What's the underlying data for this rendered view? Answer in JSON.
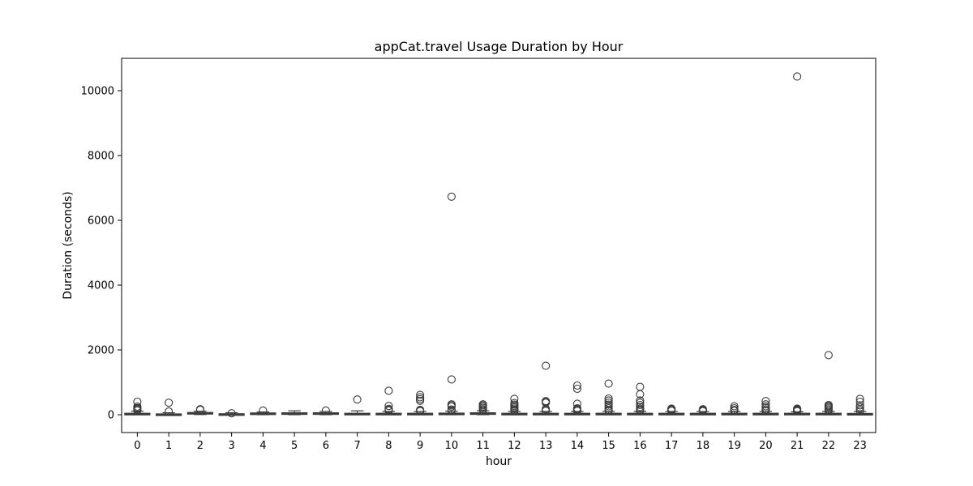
{
  "chart_data": {
    "type": "box",
    "title": "appCat.travel Usage Duration by Hour",
    "xlabel": "hour",
    "ylabel": "Duration (seconds)",
    "ylim": [
      -550,
      11000
    ],
    "yticks": [
      0,
      2000,
      4000,
      6000,
      8000,
      10000
    ],
    "categories": [
      "0",
      "1",
      "2",
      "3",
      "4",
      "5",
      "6",
      "7",
      "8",
      "9",
      "10",
      "11",
      "12",
      "13",
      "14",
      "15",
      "16",
      "17",
      "18",
      "19",
      "20",
      "21",
      "22",
      "23"
    ],
    "grid": false,
    "legend": "none",
    "box_color": "#3a3a3a",
    "boxes": [
      {
        "hour": "0",
        "whislo": 0,
        "q1": 5,
        "med": 20,
        "q3": 45,
        "whishi": 110,
        "fliers": [
          130,
          160,
          190,
          210,
          250,
          400
        ]
      },
      {
        "hour": "1",
        "whislo": 0,
        "q1": 3,
        "med": 10,
        "q3": 25,
        "whishi": 60,
        "fliers": [
          100,
          370
        ]
      },
      {
        "hour": "2",
        "whislo": 5,
        "q1": 25,
        "med": 45,
        "q3": 70,
        "whishi": 110,
        "fliers": [
          150,
          170
        ]
      },
      {
        "hour": "3",
        "whislo": 0,
        "q1": 5,
        "med": 15,
        "q3": 30,
        "whishi": 60,
        "fliers": [
          45
        ]
      },
      {
        "hour": "4",
        "whislo": 0,
        "q1": 15,
        "med": 35,
        "q3": 55,
        "whishi": 85,
        "fliers": [
          130
        ]
      },
      {
        "hour": "5",
        "whislo": 0,
        "q1": 10,
        "med": 35,
        "q3": 60,
        "whishi": 120,
        "fliers": []
      },
      {
        "hour": "6",
        "whislo": 0,
        "q1": 10,
        "med": 35,
        "q3": 60,
        "whishi": 100,
        "fliers": [
          130
        ]
      },
      {
        "hour": "7",
        "whislo": 0,
        "q1": 5,
        "med": 20,
        "q3": 45,
        "whishi": 120,
        "fliers": [
          470
        ]
      },
      {
        "hour": "8",
        "whislo": 0,
        "q1": 5,
        "med": 20,
        "q3": 45,
        "whishi": 100,
        "fliers": [
          130,
          150,
          180,
          270,
          740
        ]
      },
      {
        "hour": "9",
        "whislo": 0,
        "q1": 5,
        "med": 20,
        "q3": 45,
        "whishi": 100,
        "fliers": [
          110,
          130,
          150,
          430,
          480,
          540,
          610
        ]
      },
      {
        "hour": "10",
        "whislo": 0,
        "q1": 5,
        "med": 20,
        "q3": 50,
        "whishi": 110,
        "fliers": [
          130,
          160,
          250,
          290,
          320,
          1090,
          6730
        ]
      },
      {
        "hour": "11",
        "whislo": 0,
        "q1": 10,
        "med": 30,
        "q3": 60,
        "whishi": 120,
        "fliers": [
          140,
          170,
          210,
          250,
          290,
          320
        ]
      },
      {
        "hour": "12",
        "whislo": 0,
        "q1": 5,
        "med": 20,
        "q3": 45,
        "whishi": 100,
        "fliers": [
          120,
          150,
          190,
          230,
          270,
          310,
          360,
          490
        ]
      },
      {
        "hour": "13",
        "whislo": 0,
        "q1": 5,
        "med": 20,
        "q3": 45,
        "whishi": 100,
        "fliers": [
          120,
          140,
          180,
          370,
          400,
          420,
          1510
        ]
      },
      {
        "hour": "14",
        "whislo": 0,
        "q1": 5,
        "med": 20,
        "q3": 45,
        "whishi": 100,
        "fliers": [
          120,
          150,
          180,
          200,
          340,
          800,
          900
        ]
      },
      {
        "hour": "15",
        "whislo": 0,
        "q1": 5,
        "med": 20,
        "q3": 45,
        "whishi": 100,
        "fliers": [
          120,
          150,
          200,
          260,
          310,
          370,
          440,
          500,
          960
        ]
      },
      {
        "hour": "16",
        "whislo": 0,
        "q1": 5,
        "med": 20,
        "q3": 45,
        "whishi": 100,
        "fliers": [
          120,
          150,
          190,
          240,
          300,
          370,
          440,
          630,
          860
        ]
      },
      {
        "hour": "17",
        "whislo": 0,
        "q1": 5,
        "med": 20,
        "q3": 45,
        "whishi": 100,
        "fliers": [
          120,
          150,
          170,
          190
        ]
      },
      {
        "hour": "18",
        "whislo": 0,
        "q1": 5,
        "med": 20,
        "q3": 45,
        "whishi": 100,
        "fliers": [
          110,
          130,
          150,
          170
        ]
      },
      {
        "hour": "19",
        "whislo": 0,
        "q1": 5,
        "med": 20,
        "q3": 45,
        "whishi": 100,
        "fliers": [
          120,
          150,
          200,
          260
        ]
      },
      {
        "hour": "20",
        "whislo": 0,
        "q1": 5,
        "med": 20,
        "q3": 45,
        "whishi": 100,
        "fliers": [
          120,
          160,
          210,
          260,
          320,
          420
        ]
      },
      {
        "hour": "21",
        "whislo": 0,
        "q1": 5,
        "med": 20,
        "q3": 45,
        "whishi": 90,
        "fliers": [
          110,
          130,
          150,
          170,
          190,
          10440
        ]
      },
      {
        "hour": "22",
        "whislo": 0,
        "q1": 5,
        "med": 20,
        "q3": 45,
        "whishi": 100,
        "fliers": [
          120,
          160,
          200,
          240,
          270,
          300,
          1840
        ]
      },
      {
        "hour": "23",
        "whislo": 0,
        "q1": 5,
        "med": 15,
        "q3": 40,
        "whishi": 100,
        "fliers": [
          120,
          170,
          230,
          290,
          400,
          490
        ]
      }
    ]
  }
}
